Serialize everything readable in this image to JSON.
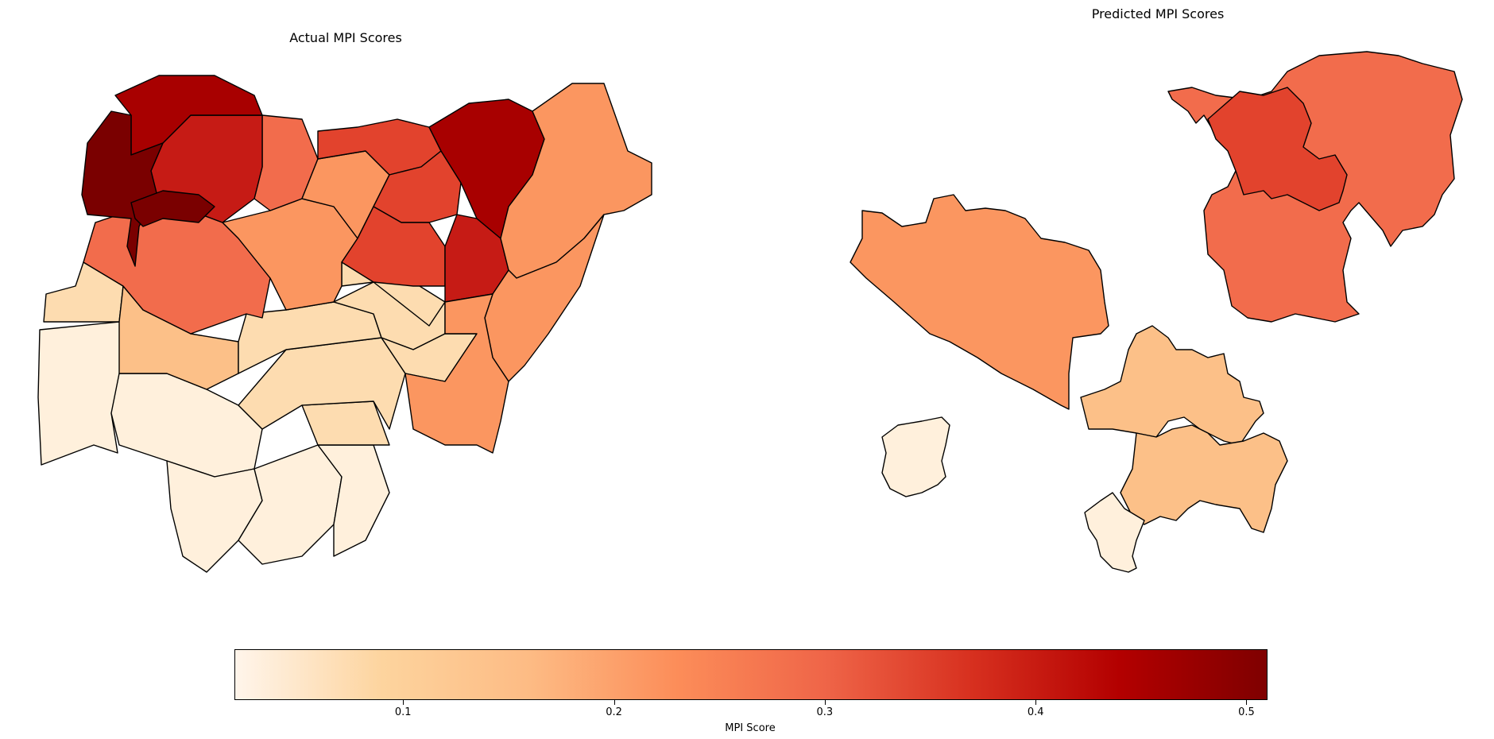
{
  "maps": [
    {
      "title": "Actual MPI Scores"
    },
    {
      "title": "Predicted MPI Scores"
    }
  ],
  "colorbar": {
    "label": "MPI Score",
    "min": 0.02,
    "max": 0.51,
    "ticks": [
      "0.1",
      "0.2",
      "0.3",
      "0.4",
      "0.5"
    ],
    "colors": [
      "#fff5eb",
      "#fdd49e",
      "#fdbb84",
      "#fc8d59",
      "#ef6548",
      "#d7301f",
      "#b30000",
      "#7f0000"
    ]
  },
  "colors": {
    "very_low": "#fff0dc",
    "low": "#fddcb0",
    "low_mid": "#fcc088",
    "mid": "#fb9660",
    "mid_high": "#f26c4c",
    "high": "#e2432d",
    "very_high": "#c61b15",
    "extreme_red": "#a80000",
    "extreme": "#7a0000"
  }
}
